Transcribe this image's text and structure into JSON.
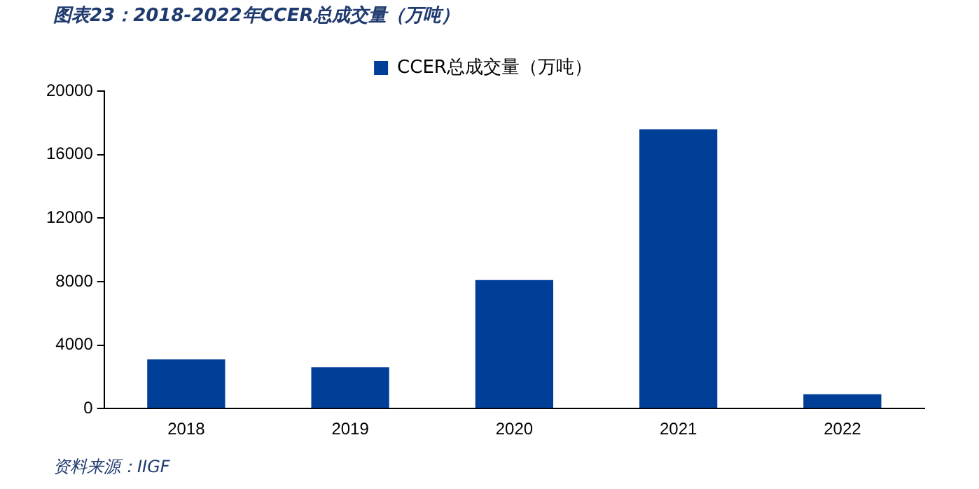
{
  "chart_data": {
    "type": "bar",
    "title": "图表23：2018-2022年CCER总成交量（万吨）",
    "categories": [
      "2018",
      "2019",
      "2020",
      "2021",
      "2022"
    ],
    "series": [
      {
        "name": "CCER总成交量（万吨）",
        "color": "#003f98",
        "values": [
          3100,
          2600,
          8100,
          17600,
          900
        ]
      }
    ],
    "ylim": [
      0,
      20000
    ],
    "yticks": [
      0,
      4000,
      8000,
      12000,
      16000,
      20000
    ],
    "grid": false,
    "legend": "top",
    "annotations": [
      "资料来源：IIGF"
    ]
  }
}
